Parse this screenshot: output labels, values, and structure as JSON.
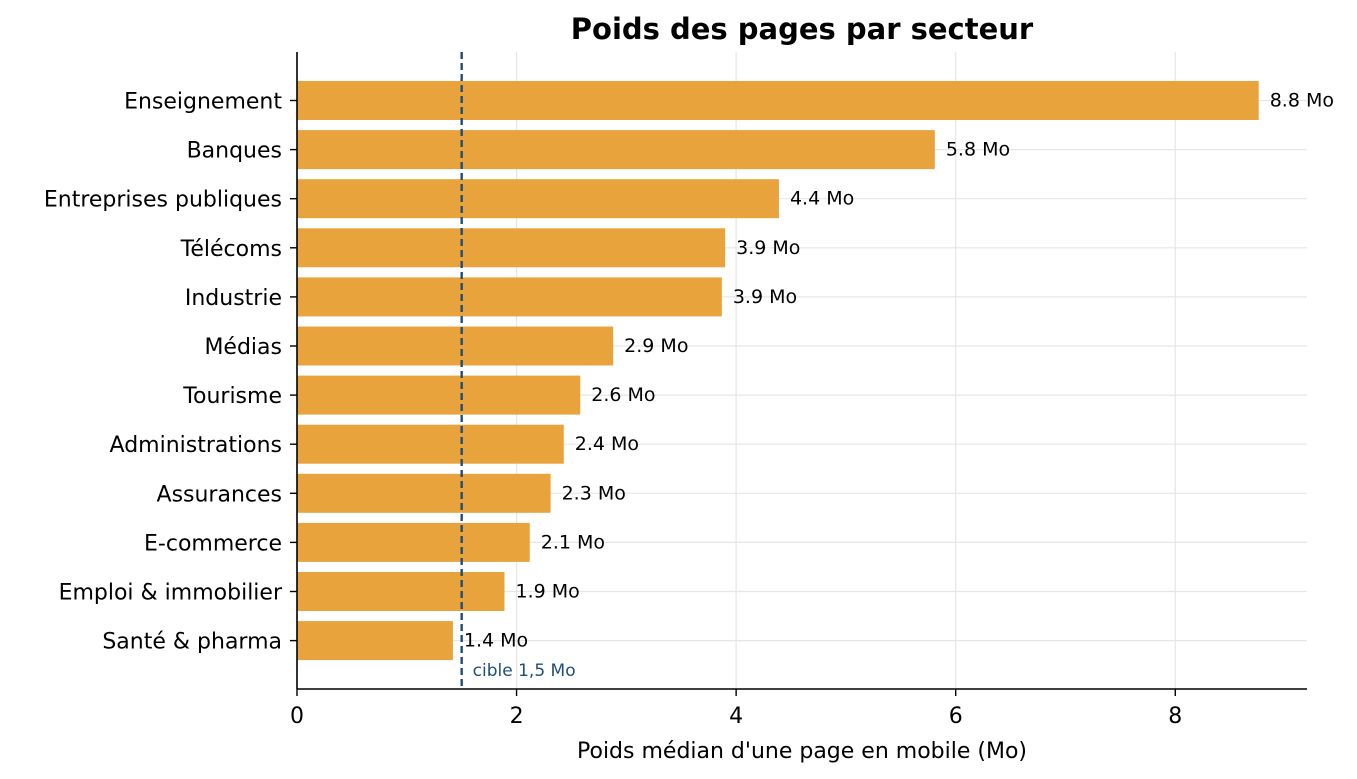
{
  "chart_data": {
    "type": "bar",
    "orientation": "horizontal",
    "title": "Poids des pages par secteur",
    "xlabel": "Poids médian d'une page en mobile (Mo)",
    "ylabel": "",
    "xlim": [
      0,
      9.2
    ],
    "xticks": [
      0,
      2,
      4,
      6,
      8
    ],
    "grid": true,
    "bar_color": "#e8a33d",
    "categories": [
      "Enseignement",
      "Banques",
      "Entreprises publiques",
      "Télécoms",
      "Industrie",
      "Médias",
      "Tourisme",
      "Administrations",
      "Assurances",
      "E-commerce",
      "Emploi & immobilier",
      "Santé & pharma"
    ],
    "values": [
      8.76,
      5.81,
      4.39,
      3.9,
      3.87,
      2.88,
      2.58,
      2.43,
      2.31,
      2.12,
      1.89,
      1.42
    ],
    "value_labels": [
      "8.8 Mo",
      "5.8 Mo",
      "4.4 Mo",
      "3.9 Mo",
      "3.9 Mo",
      "2.9 Mo",
      "2.6 Mo",
      "2.4 Mo",
      "2.3 Mo",
      "2.1 Mo",
      "1.9 Mo",
      "1.4 Mo"
    ],
    "target": {
      "value": 1.5,
      "label": "cible 1,5 Mo",
      "color": "#1f4e79",
      "style": "dashed"
    }
  }
}
